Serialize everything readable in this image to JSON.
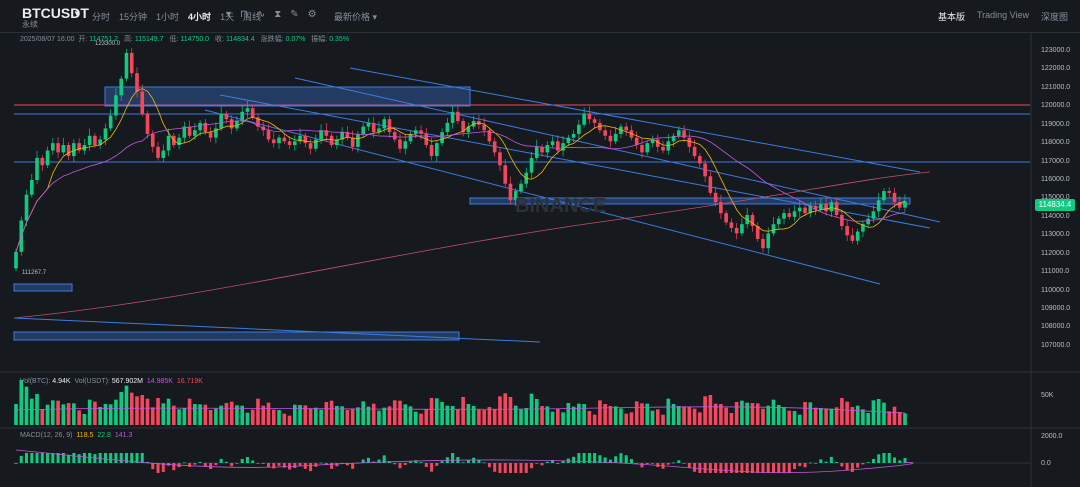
{
  "header": {
    "symbol": "BTCUSDT",
    "symbol_sub": "永续",
    "intervals": [
      "分时",
      "15分钟",
      "1小时",
      "4小时",
      "1天",
      "周线"
    ],
    "active_interval": "4小时",
    "indicator_label": "最新价格",
    "views": [
      "基本版",
      "Trading View",
      "深度图"
    ],
    "active_view": "基本版"
  },
  "ohlc": {
    "date": "2025/08/07 16:00",
    "open_label": "开:",
    "open": "114751.2",
    "high_label": "高:",
    "high": "115149.7",
    "low_label": "低:",
    "low": "114750.0",
    "close_label": "收:",
    "close": "114834.4",
    "change_label": "涨跌幅:",
    "change": "0.07%",
    "amp_label": "振幅:",
    "amp": "0.35%"
  },
  "chart_annotations": {
    "high_mark": "123300.0",
    "low_mark": "111267.7",
    "watermark": "BINANCE"
  },
  "price_axis": [
    "123000.0",
    "122000.0",
    "121000.0",
    "120000.0",
    "119000.0",
    "118000.0",
    "117000.0",
    "116000.0",
    "115000.0",
    "114000.0",
    "113000.0",
    "112000.0",
    "111000.0",
    "110000.0",
    "109000.0",
    "108000.0",
    "107000.0"
  ],
  "current_price": "114834.4",
  "volume": {
    "label1": "Vol(BTC):",
    "val1": "4.94K",
    "label2": "Vol(USDT):",
    "val2": "567.902M",
    "val3": "14.985K",
    "val4": "16.719K",
    "axis": "50K"
  },
  "macd": {
    "label": "MACD(12, 26, 9)",
    "v1": "118.5",
    "v2": "22.8",
    "v3": "141.3",
    "axis_top": "2000.0",
    "axis_zero": "0.0"
  },
  "colors": {
    "up": "#0ecb81",
    "down": "#f6465d",
    "bg": "#161a1e"
  },
  "chart_data": {
    "type": "candlestick",
    "title": "BTCUSDT",
    "interval": "4小时",
    "ylim": [
      106500,
      123600
    ],
    "closes": [
      112100,
      113800,
      115200,
      116000,
      117200,
      116800,
      117600,
      118000,
      117500,
      117900,
      117300,
      118000,
      117600,
      117900,
      118400,
      117900,
      118200,
      118800,
      119500,
      120600,
      121500,
      122900,
      121800,
      120800,
      119600,
      118500,
      117800,
      117200,
      117600,
      118400,
      117900,
      118300,
      118900,
      118400,
      118700,
      119100,
      118600,
      118300,
      118800,
      119600,
      119300,
      118800,
      119200,
      119700,
      119900,
      119400,
      118900,
      118700,
      118200,
      118000,
      118300,
      118100,
      117900,
      118100,
      118400,
      118000,
      117700,
      118200,
      118700,
      118400,
      117900,
      118200,
      118600,
      118300,
      117800,
      118500,
      118900,
      119100,
      118600,
      118800,
      119300,
      118600,
      118200,
      117700,
      118100,
      118500,
      118700,
      118500,
      117900,
      117300,
      118000,
      118600,
      119100,
      119700,
      119200,
      118600,
      118900,
      119200,
      119000,
      118700,
      118100,
      117500,
      116800,
      115800,
      114900,
      115400,
      115800,
      116400,
      117200,
      117800,
      117500,
      117900,
      118100,
      117600,
      118000,
      118300,
      118500,
      119000,
      119600,
      119300,
      119100,
      118700,
      118400,
      118100,
      118500,
      118900,
      118700,
      118300,
      117900,
      117500,
      118000,
      118200,
      117800,
      117600,
      118100,
      118400,
      118700,
      118300,
      117800,
      117300,
      116900,
      116200,
      115300,
      114800,
      114200,
      113700,
      113400,
      113100,
      113600,
      114100,
      113500,
      112800,
      112300,
      113100,
      113600,
      113900,
      114200,
      114000,
      114300,
      114500,
      114200,
      114600,
      114400,
      114700,
      114300,
      114800,
      114100,
      113500,
      113000,
      112700,
      113200,
      113600,
      113900,
      114300,
      114900,
      115400,
      115300,
      114800,
      114500,
      114834
    ]
  }
}
